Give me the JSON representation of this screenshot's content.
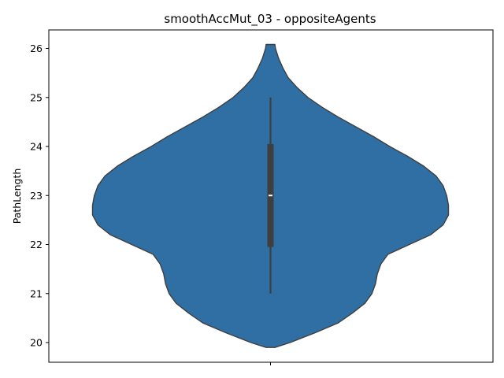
{
  "chart_data": {
    "type": "violin",
    "title": "smoothAccMut_03 - oppositeAgents",
    "xlabel": "",
    "ylabel": "PathLength",
    "ylim": [
      19.6,
      26.4
    ],
    "yticks": [
      "20",
      "21",
      "22",
      "23",
      "24",
      "25",
      "26"
    ],
    "grid": false,
    "series": [
      {
        "category": "",
        "color": "#2f6fa3",
        "density_profile": [
          {
            "y": 19.9,
            "w": 0.025
          },
          {
            "y": 20.0,
            "w": 0.11
          },
          {
            "y": 20.2,
            "w": 0.25
          },
          {
            "y": 20.4,
            "w": 0.38
          },
          {
            "y": 20.6,
            "w": 0.46
          },
          {
            "y": 20.8,
            "w": 0.53
          },
          {
            "y": 21.0,
            "w": 0.57
          },
          {
            "y": 21.2,
            "w": 0.59
          },
          {
            "y": 21.4,
            "w": 0.6
          },
          {
            "y": 21.6,
            "w": 0.62
          },
          {
            "y": 21.8,
            "w": 0.66
          },
          {
            "y": 22.0,
            "w": 0.78
          },
          {
            "y": 22.2,
            "w": 0.9
          },
          {
            "y": 22.4,
            "w": 0.97
          },
          {
            "y": 22.6,
            "w": 1.0
          },
          {
            "y": 22.8,
            "w": 1.0
          },
          {
            "y": 23.0,
            "w": 0.99
          },
          {
            "y": 23.2,
            "w": 0.97
          },
          {
            "y": 23.4,
            "w": 0.93
          },
          {
            "y": 23.6,
            "w": 0.86
          },
          {
            "y": 23.8,
            "w": 0.77
          },
          {
            "y": 24.0,
            "w": 0.67
          },
          {
            "y": 24.2,
            "w": 0.58
          },
          {
            "y": 24.4,
            "w": 0.48
          },
          {
            "y": 24.6,
            "w": 0.38
          },
          {
            "y": 24.8,
            "w": 0.29
          },
          {
            "y": 25.0,
            "w": 0.21
          },
          {
            "y": 25.2,
            "w": 0.15
          },
          {
            "y": 25.4,
            "w": 0.1
          },
          {
            "y": 25.6,
            "w": 0.07
          },
          {
            "y": 25.8,
            "w": 0.045
          },
          {
            "y": 26.0,
            "w": 0.028
          },
          {
            "y": 26.08,
            "w": 0.025
          }
        ],
        "whisker_low": 21.0,
        "q1": 21.95,
        "median": 23.0,
        "q3": 24.05,
        "whisker_high": 25.0
      }
    ]
  }
}
